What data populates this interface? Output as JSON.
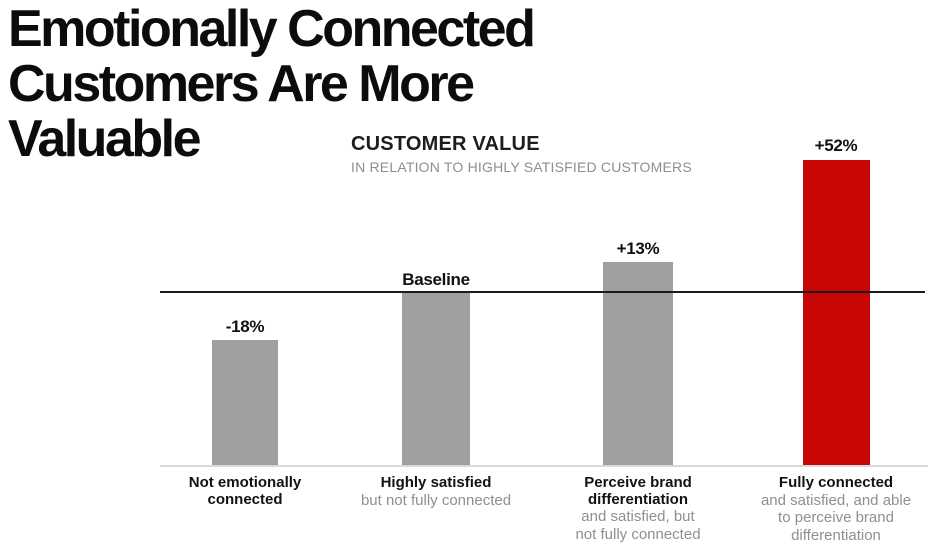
{
  "heading": {
    "lines": [
      "Emotionally Connected",
      "Customers Are More",
      "Valuable"
    ],
    "color": "#0c0c0c"
  },
  "chart": {
    "title": "CUSTOMER VALUE",
    "subtitle": "IN RELATION TO HIGHLY SATISFIED CUSTOMERS",
    "colors": {
      "gray_bar": "#9f9f9f",
      "red_bar": "#c90606",
      "baseline_line": "#1b1b1b",
      "bottom_axis": "#d9d9d9",
      "sub_text": "#8f8f8f"
    },
    "bars": [
      {
        "value_label": "-18%",
        "label_lines": [
          "Not emotionally",
          "connected"
        ],
        "sub_lines": [],
        "color": "#9f9f9f"
      },
      {
        "value_label": "Baseline",
        "label_lines": [
          "Highly satisfied"
        ],
        "sub_lines": [
          "but not fully connected"
        ],
        "color": "#9f9f9f"
      },
      {
        "value_label": "+13%",
        "label_lines": [
          "Perceive brand",
          "differentiation"
        ],
        "sub_lines": [
          "and satisfied, but",
          "not fully connected"
        ],
        "color": "#9f9f9f"
      },
      {
        "value_label": "+52%",
        "label_lines": [
          "Fully connected"
        ],
        "sub_lines": [
          "and satisfied, and able",
          "to perceive brand",
          "differentiation"
        ],
        "color": "#c90606"
      }
    ]
  },
  "chart_data": {
    "type": "bar",
    "title": "CUSTOMER VALUE",
    "subtitle": "IN RELATION TO HIGHLY SATISFIED CUSTOMERS",
    "categories": [
      "Not emotionally connected",
      "Highly satisfied but not fully connected",
      "Perceive brand differentiation and satisfied, but not fully connected",
      "Fully connected and satisfied, and able to perceive brand differentiation"
    ],
    "values": [
      -18,
      0,
      13,
      52
    ],
    "value_labels": [
      "-18%",
      "Baseline",
      "+13%",
      "+52%"
    ],
    "unit": "percent vs baseline (Highly satisfied customers = baseline)",
    "baseline_value": 0,
    "baseline_label": "Baseline",
    "bar_colors": [
      "#9f9f9f",
      "#9f9f9f",
      "#9f9f9f",
      "#c90606"
    ],
    "grid": false,
    "legend": false
  }
}
